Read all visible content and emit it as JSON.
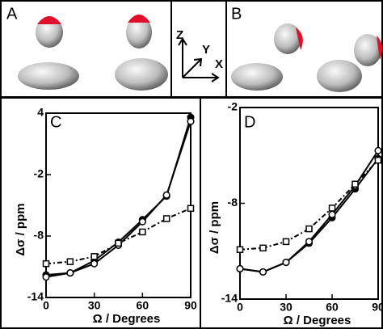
{
  "panels": {
    "a": "A",
    "b": "B",
    "axes": [
      "Z",
      "Y",
      "X"
    ]
  },
  "chart_data": [
    {
      "type": "line",
      "title": "C",
      "x_label": "Ω / Degrees",
      "y_label": "Δσ / ppm",
      "x": [
        0,
        15,
        30,
        45,
        60,
        75,
        90
      ],
      "xlim": [
        0,
        90
      ],
      "xticks": [
        0,
        30,
        60,
        90
      ],
      "ylim": [
        -14,
        4
      ],
      "yticks": [
        4,
        -2,
        -8,
        -14
      ],
      "series": [
        {
          "color": "#000000",
          "marker": "filled-circle",
          "dash": "solid",
          "values": [
            -11.8,
            -11.6,
            -10.4,
            -8.6,
            -6.4,
            -4.1,
            3.6
          ]
        },
        {
          "color": "#000000",
          "marker": "open-circle",
          "dash": "solid",
          "values": [
            -12.0,
            -11.6,
            -10.7,
            -8.9,
            -6.6,
            -4.0,
            3.2
          ]
        },
        {
          "color": "#000000",
          "marker": "open-square",
          "dash": "dashdot",
          "values": [
            -10.7,
            -10.5,
            -10.0,
            -8.7,
            -7.6,
            -6.3,
            -5.3
          ]
        }
      ]
    },
    {
      "type": "line",
      "title": "D",
      "x_label": "Ω / Degrees",
      "y_label": "Δσ / ppm",
      "x": [
        0,
        15,
        30,
        45,
        60,
        75,
        90
      ],
      "xlim": [
        0,
        90
      ],
      "xticks": [
        0,
        30,
        60,
        90
      ],
      "ylim": [
        -14,
        -2
      ],
      "yticks": [
        -2,
        -8,
        -14
      ],
      "series": [
        {
          "color": "#000000",
          "marker": "filled-circle",
          "dash": "solid",
          "values": [
            -12.1,
            -12.3,
            -11.7,
            -10.5,
            -8.9,
            -7.1,
            -5.2
          ]
        },
        {
          "color": "#000000",
          "marker": "open-circle",
          "dash": "solid",
          "values": [
            -12.1,
            -12.3,
            -11.7,
            -10.4,
            -8.7,
            -6.9,
            -4.7
          ]
        },
        {
          "color": "#000000",
          "marker": "open-square",
          "dash": "dashdot",
          "values": [
            -10.9,
            -10.8,
            -10.4,
            -9.6,
            -8.3,
            -6.8,
            -5.3
          ]
        }
      ]
    }
  ]
}
